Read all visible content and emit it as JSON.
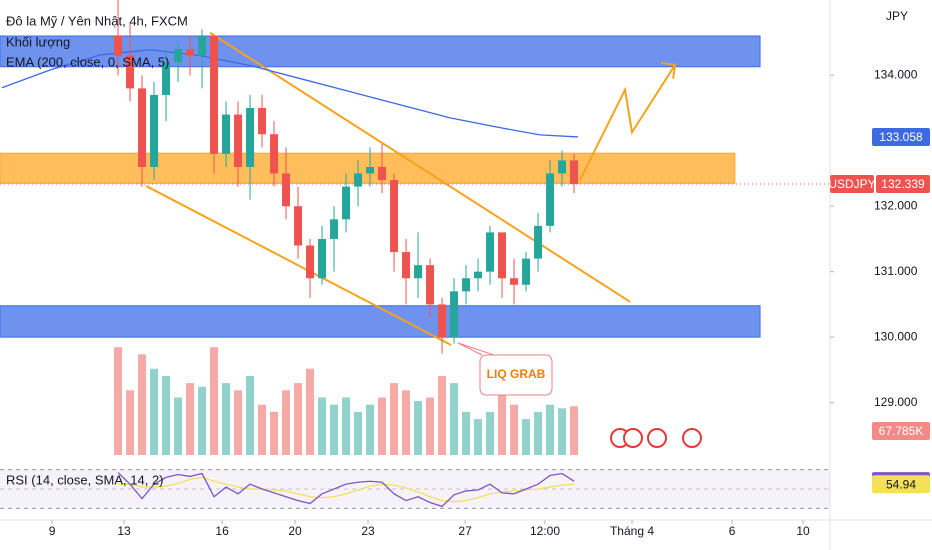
{
  "chart_data": {
    "type": "candlestick",
    "title": "Đô la Mỹ / Yên Nhật, 4h, FXCM",
    "volume_title": "Khối lượng",
    "ema_title": "EMA (200, close, 0, SMA, 5)",
    "rsi_title": "RSI (14, close, SMA, 14, 2)",
    "currency": "JPY",
    "symbol": "USDJPY",
    "annotation": "LIQ GRAB",
    "up_color": "#26a69a",
    "down_color": "#ef5350",
    "xlim": [
      -9.67,
      59.33
    ],
    "xticks": [
      {
        "value": -5.5,
        "label": "9"
      },
      {
        "value": 0.5,
        "label": "13"
      },
      {
        "value": 8.67,
        "label": "16"
      },
      {
        "value": 14.75,
        "label": "20"
      },
      {
        "value": 20.83,
        "label": "23"
      },
      {
        "value": 28.92,
        "label": "27"
      },
      {
        "value": 35.58,
        "label": "12:00"
      },
      {
        "value": 42.83,
        "label": "Tháng 4"
      },
      {
        "value": 51.17,
        "label": "6"
      },
      {
        "value": 57.08,
        "label": "10"
      }
    ],
    "ylim": [
      128.2,
      135.15
    ],
    "yticks": [
      {
        "value": 129,
        "label": "129.000"
      },
      {
        "value": 130,
        "label": "130.000"
      },
      {
        "value": 131,
        "label": "131.000"
      },
      {
        "value": 132,
        "label": "132.000"
      },
      {
        "value": 134,
        "label": "134.000"
      }
    ],
    "open": [
      134.6,
      134.3,
      133.8,
      132.6,
      133.7,
      134.2,
      134.4,
      134.3,
      134.6,
      132.8,
      133.4,
      132.6,
      133.5,
      133.1,
      132.5,
      132.0,
      131.4,
      130.9,
      131.5,
      131.8,
      132.3,
      132.5,
      132.6,
      132.4,
      131.3,
      130.9,
      131.1,
      130.5,
      130.0,
      130.7,
      130.9,
      131.0,
      131.6,
      130.9,
      130.8,
      131.2,
      131.7,
      132.5,
      132.7
    ],
    "high": [
      135.3,
      134.8,
      134.0,
      133.9,
      134.4,
      134.5,
      134.6,
      134.7,
      134.6,
      133.6,
      133.6,
      133.7,
      133.7,
      133.3,
      132.9,
      132.3,
      131.5,
      131.7,
      132.0,
      132.5,
      132.7,
      132.9,
      132.95,
      132.5,
      131.5,
      131.6,
      131.2,
      130.6,
      130.9,
      131.1,
      131.2,
      131.7,
      131.6,
      131.2,
      131.3,
      131.9,
      132.7,
      132.85,
      132.8
    ],
    "low": [
      134.0,
      133.6,
      132.3,
      132.4,
      133.3,
      133.9,
      134.0,
      133.8,
      132.5,
      132.6,
      132.3,
      132.1,
      132.9,
      132.3,
      131.8,
      131.2,
      130.6,
      130.8,
      131.0,
      131.6,
      132.0,
      132.3,
      132.2,
      131.0,
      130.5,
      130.6,
      130.3,
      129.75,
      129.9,
      130.5,
      130.7,
      130.8,
      130.6,
      130.5,
      130.7,
      131.0,
      131.6,
      132.3,
      132.2
    ],
    "close": [
      134.3,
      133.8,
      132.6,
      133.7,
      134.2,
      134.4,
      134.3,
      134.6,
      132.8,
      133.4,
      132.6,
      133.5,
      133.1,
      132.5,
      132.0,
      131.4,
      130.9,
      131.5,
      131.8,
      132.3,
      132.5,
      132.6,
      132.4,
      131.3,
      130.9,
      131.1,
      130.5,
      130.0,
      130.7,
      130.9,
      131.0,
      131.6,
      130.9,
      130.8,
      131.2,
      131.7,
      132.5,
      132.7,
      132.339
    ],
    "volume": [
      150000,
      90000,
      140000,
      120000,
      110000,
      80000,
      100000,
      95000,
      150000,
      100000,
      90000,
      110000,
      70000,
      60000,
      90000,
      100000,
      120000,
      80000,
      70000,
      80000,
      60000,
      70000,
      80000,
      100000,
      90000,
      75000,
      80000,
      110000,
      100000,
      60000,
      50000,
      60000,
      90000,
      70000,
      50000,
      60000,
      70000,
      65000,
      67785
    ],
    "volume_label": "67.785K",
    "volume_lim": [
      0,
      160000
    ],
    "ema": {
      "color": "#3d6ae0",
      "x": [
        -9.67,
        -5.67,
        -1.5,
        2.67,
        6.83,
        11,
        15.17,
        19.33,
        23.5,
        27.67,
        31.83,
        35.17,
        38.33
      ],
      "values": [
        133.81,
        134.08,
        134.31,
        134.39,
        134.3,
        134.15,
        133.95,
        133.75,
        133.55,
        133.35,
        133.2,
        133.09,
        133.058
      ]
    },
    "zones": [
      {
        "from": 134.13,
        "to": 134.6,
        "end": 53.5,
        "color": "#3d6ee8"
      },
      {
        "from": 132.35,
        "to": 132.81,
        "end": 51.4,
        "color": "#ffa726"
      },
      {
        "from": 130.0,
        "to": 130.48,
        "end": 53.5,
        "color": "#3d6ee8"
      }
    ],
    "trendlines": [
      {
        "x": [
          7.67,
          42.67
        ],
        "y": [
          134.65,
          130.54
        ]
      },
      {
        "x": [
          2.33,
          27.75
        ],
        "y": [
          132.31,
          129.88
        ]
      },
      {
        "x": [
          38.5,
          42.25,
          42.83,
          46.42
        ],
        "y": [
          132.4,
          133.78,
          133.13,
          134.16
        ]
      }
    ],
    "trend_color": "#f7a21b",
    "rsi_ylim": [
      20,
      80
    ],
    "rsi_levels": [
      70,
      50,
      30
    ],
    "rsi": {
      "color": "#7e57c2",
      "values": [
        67,
        55,
        40,
        55,
        62,
        65,
        63,
        66,
        42,
        52,
        45,
        55,
        50,
        46,
        42,
        38,
        35,
        45,
        50,
        55,
        57,
        58,
        57,
        45,
        38,
        42,
        36,
        32,
        44,
        48,
        49,
        55,
        46,
        45,
        50,
        55,
        64,
        66,
        58.13
      ]
    },
    "rsi_ma": {
      "color": "#f5e05a",
      "values": [
        55,
        55,
        52,
        52,
        53,
        56,
        60,
        62,
        58,
        55,
        52,
        50,
        50,
        49,
        48,
        45,
        42,
        41,
        42,
        45,
        49,
        53,
        55,
        54,
        51,
        47,
        42,
        38,
        37,
        38,
        41,
        45,
        47,
        48,
        49,
        50,
        52,
        54,
        54.94
      ]
    }
  }
}
